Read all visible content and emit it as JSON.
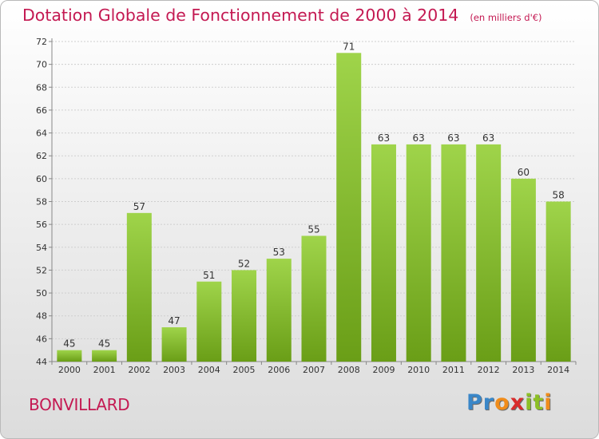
{
  "header": {
    "title": "Dotation Globale de Fonctionnement de 2000 à 2014",
    "subtitle": "(en milliers d'€)"
  },
  "footer": {
    "commune": "BONVILLARD",
    "brand_letters": [
      "P",
      "r",
      "o",
      "x",
      "i",
      "t",
      "i"
    ],
    "brand_colors": [
      "#3a87c8",
      "#3a87c8",
      "#f08c1a",
      "#d92c2c",
      "#8cbf26",
      "#8cbf26",
      "#f08c1a"
    ]
  },
  "colors": {
    "bar_light": "#9fd44a",
    "bar_dark": "#6a9e17",
    "title": "#c41952",
    "grid": "#cfcfcf"
  },
  "chart_data": {
    "type": "bar",
    "categories": [
      "2000",
      "2001",
      "2002",
      "2003",
      "2004",
      "2005",
      "2006",
      "2007",
      "2008",
      "2009",
      "2010",
      "2011",
      "2012",
      "2013",
      "2014"
    ],
    "values": [
      45,
      45,
      57,
      47,
      51,
      52,
      53,
      55,
      71,
      63,
      63,
      63,
      63,
      60,
      58
    ],
    "title": "Dotation Globale de Fonctionnement de 2000 à 2014",
    "subtitle": "(en milliers d'€)",
    "xlabel": "",
    "ylabel": "",
    "ylim": [
      44,
      72
    ],
    "yticks": [
      44,
      46,
      48,
      50,
      52,
      54,
      56,
      58,
      60,
      62,
      64,
      66,
      68,
      70,
      72
    ],
    "grid": "horizontal",
    "legend": "none"
  }
}
